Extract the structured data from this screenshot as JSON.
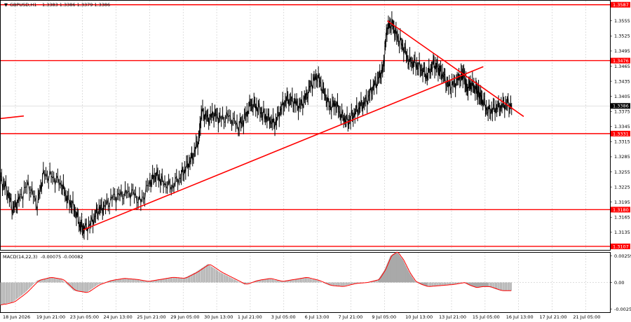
{
  "header": {
    "symbol_text": "GBPUSD,H1",
    "ohlc_text": "1.3383 1.3386 1.3379 1.3386"
  },
  "macd_header": {
    "label": "MACD(14,22,3)",
    "values": "-0.00075 -0.00082"
  },
  "colors": {
    "level": "#ff0000",
    "trend": "#ff0000",
    "candle": "#000000",
    "macd_hist": "#a9a9a9",
    "macd_signal": "#ff0000",
    "current_price_bg": "#000000",
    "grid": "#c8c8c8"
  },
  "levels": [
    {
      "value": 1.3587,
      "label": "1.3587"
    },
    {
      "value": 1.3476,
      "label": "1.3476"
    },
    {
      "value": 1.3331,
      "label": "1.3331"
    },
    {
      "value": 1.318,
      "label": "1.3180"
    },
    {
      "value": 1.3107,
      "label": "1.3107"
    }
  ],
  "current_price": {
    "value": 1.3386,
    "label": "1.3386"
  },
  "price_axis_ticks": [
    "1.3555",
    "1.3525",
    "1.3495",
    "1.3465",
    "1.3435",
    "1.3405",
    "1.3375",
    "1.3345",
    "1.3315",
    "1.3285",
    "1.3255",
    "1.3225",
    "1.3195",
    "1.3165",
    "1.3135"
  ],
  "macd_axis_ticks": [
    "0.00259",
    "0.00",
    "-0.00259"
  ],
  "time_labels": [
    "18 Jun 2026",
    "19 Jun 21:00",
    "23 Jun 05:00",
    "24 Jun 13:00",
    "25 Jun 21:00",
    "29 Jun 05:00",
    "30 Jun 13:00",
    "1 Jul 21:00",
    "3 Jul 05:00",
    "6 Jul 13:00",
    "7 Jul 21:00",
    "9 Jul 05:00",
    "10 Jul 13:00",
    "13 Jul 21:00",
    "15 Jul 05:00",
    "16 Jul 13:00",
    "17 Jul 21:00",
    "21 Jul 05:00"
  ],
  "chart_data": {
    "type": "line",
    "title": "GBPUSD,H1",
    "price_ylim": [
      1.31,
      1.3595
    ],
    "macd_ylim": [
      -0.0029,
      0.0029
    ],
    "trendlines": [
      {
        "name": "ascending",
        "points": [
          [
            0.1357,
            1.314
          ],
          [
            0.7921,
            1.3464
          ]
        ]
      },
      {
        "name": "descending",
        "points": [
          [
            0.6346,
            1.3555
          ],
          [
            0.8584,
            1.3365
          ]
        ]
      },
      {
        "name": "short-left",
        "points": [
          [
            0.0,
            1.3361
          ],
          [
            0.0379,
            1.3366
          ]
        ]
      }
    ],
    "price_path": [
      [
        0.0,
        1.324
      ],
      [
        0.01,
        1.322
      ],
      [
        0.02,
        1.318
      ],
      [
        0.03,
        1.32
      ],
      [
        0.045,
        1.323
      ],
      [
        0.06,
        1.319
      ],
      [
        0.07,
        1.325
      ],
      [
        0.085,
        1.3245
      ],
      [
        0.1,
        1.323
      ],
      [
        0.11,
        1.32
      ],
      [
        0.12,
        1.3185
      ],
      [
        0.13,
        1.315
      ],
      [
        0.137,
        1.314
      ],
      [
        0.15,
        1.3155
      ],
      [
        0.16,
        1.318
      ],
      [
        0.17,
        1.3185
      ],
      [
        0.185,
        1.3205
      ],
      [
        0.2,
        1.321
      ],
      [
        0.215,
        1.3215
      ],
      [
        0.23,
        1.3195
      ],
      [
        0.245,
        1.3235
      ],
      [
        0.255,
        1.325
      ],
      [
        0.265,
        1.3235
      ],
      [
        0.28,
        1.3225
      ],
      [
        0.295,
        1.3245
      ],
      [
        0.305,
        1.3265
      ],
      [
        0.315,
        1.3285
      ],
      [
        0.325,
        1.332
      ],
      [
        0.33,
        1.3375
      ],
      [
        0.34,
        1.336
      ],
      [
        0.35,
        1.337
      ],
      [
        0.36,
        1.336
      ],
      [
        0.375,
        1.3365
      ],
      [
        0.39,
        1.3345
      ],
      [
        0.4,
        1.336
      ],
      [
        0.41,
        1.339
      ],
      [
        0.42,
        1.3385
      ],
      [
        0.43,
        1.337
      ],
      [
        0.44,
        1.336
      ],
      [
        0.45,
        1.335
      ],
      [
        0.46,
        1.338
      ],
      [
        0.47,
        1.34
      ],
      [
        0.48,
        1.3395
      ],
      [
        0.49,
        1.3385
      ],
      [
        0.5,
        1.34
      ],
      [
        0.51,
        1.343
      ],
      [
        0.52,
        1.3445
      ],
      [
        0.53,
        1.3415
      ],
      [
        0.54,
        1.3385
      ],
      [
        0.55,
        1.339
      ],
      [
        0.56,
        1.3365
      ],
      [
        0.57,
        1.3355
      ],
      [
        0.58,
        1.337
      ],
      [
        0.59,
        1.3385
      ],
      [
        0.6,
        1.3395
      ],
      [
        0.61,
        1.342
      ],
      [
        0.62,
        1.344
      ],
      [
        0.628,
        1.346
      ],
      [
        0.634,
        1.354
      ],
      [
        0.642,
        1.355
      ],
      [
        0.65,
        1.3525
      ],
      [
        0.66,
        1.3505
      ],
      [
        0.67,
        1.3475
      ],
      [
        0.68,
        1.347
      ],
      [
        0.69,
        1.346
      ],
      [
        0.7,
        1.3445
      ],
      [
        0.71,
        1.347
      ],
      [
        0.718,
        1.346
      ],
      [
        0.725,
        1.345
      ],
      [
        0.735,
        1.3425
      ],
      [
        0.745,
        1.343
      ],
      [
        0.755,
        1.3445
      ],
      [
        0.76,
        1.345
      ],
      [
        0.765,
        1.342
      ],
      [
        0.772,
        1.343
      ],
      [
        0.78,
        1.342
      ],
      [
        0.785,
        1.341
      ],
      [
        0.79,
        1.34
      ],
      [
        0.8,
        1.3375
      ],
      [
        0.81,
        1.338
      ],
      [
        0.82,
        1.3385
      ],
      [
        0.83,
        1.339
      ],
      [
        0.84,
        1.3386
      ]
    ],
    "macd_hist": [
      [
        0.0,
        -0.0022
      ],
      [
        0.02,
        -0.0019
      ],
      [
        0.04,
        -0.001
      ],
      [
        0.06,
        0.0002
      ],
      [
        0.08,
        0.0005
      ],
      [
        0.1,
        0.0003
      ],
      [
        0.12,
        -0.0008
      ],
      [
        0.14,
        -0.001
      ],
      [
        0.16,
        -0.0002
      ],
      [
        0.18,
        0.0002
      ],
      [
        0.2,
        0.0004
      ],
      [
        0.22,
        0.0003
      ],
      [
        0.24,
        0.0001
      ],
      [
        0.26,
        0.0003
      ],
      [
        0.28,
        0.0005
      ],
      [
        0.3,
        0.0004
      ],
      [
        0.32,
        0.001
      ],
      [
        0.34,
        0.0018
      ],
      [
        0.36,
        0.001
      ],
      [
        0.38,
        0.0004
      ],
      [
        0.4,
        -0.0002
      ],
      [
        0.42,
        0.0002
      ],
      [
        0.44,
        0.0004
      ],
      [
        0.46,
        0.0001
      ],
      [
        0.48,
        0.0003
      ],
      [
        0.5,
        0.0005
      ],
      [
        0.52,
        0.0002
      ],
      [
        0.54,
        -0.0003
      ],
      [
        0.56,
        -0.0004
      ],
      [
        0.58,
        -0.0001
      ],
      [
        0.6,
        0.0
      ],
      [
        0.62,
        0.0003
      ],
      [
        0.63,
        0.0012
      ],
      [
        0.64,
        0.0026
      ],
      [
        0.65,
        0.003
      ],
      [
        0.66,
        0.0022
      ],
      [
        0.67,
        0.001
      ],
      [
        0.68,
        0.0001
      ],
      [
        0.69,
        -0.0002
      ],
      [
        0.7,
        -0.0004
      ],
      [
        0.72,
        -0.0003
      ],
      [
        0.74,
        -0.0002
      ],
      [
        0.76,
        0.0
      ],
      [
        0.77,
        -0.0003
      ],
      [
        0.78,
        -0.0005
      ],
      [
        0.79,
        -0.0004
      ],
      [
        0.8,
        -0.0004
      ],
      [
        0.82,
        -0.0008
      ],
      [
        0.84,
        -0.0008
      ]
    ]
  }
}
